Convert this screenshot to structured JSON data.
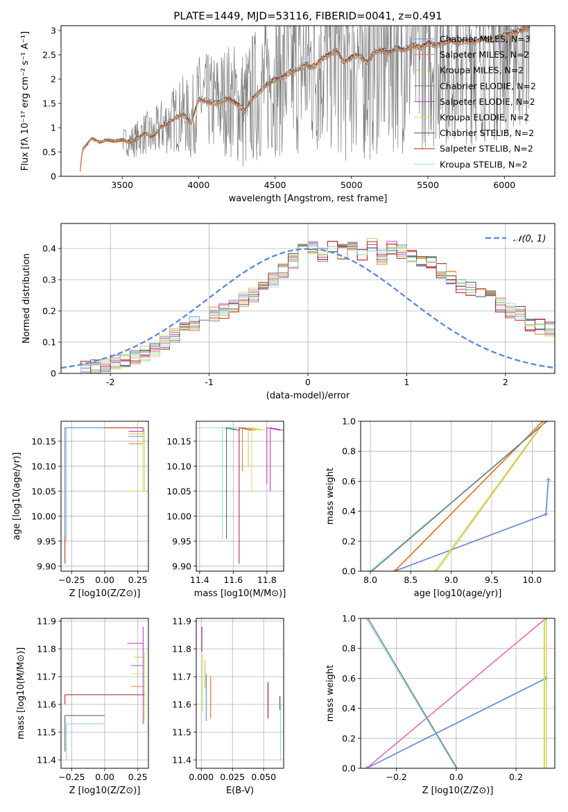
{
  "figure_title": "PLATE=1449, MJD=53116, FIBERID=0041, z=0.491",
  "series_colors": [
    "#6a8ed8",
    "#e8772e",
    "#e0b84a",
    "#5a8a5a",
    "#b02fb8",
    "#c8e060",
    "#505050",
    "#b81818",
    "#8fd8e0"
  ],
  "chart_data": [
    {
      "id": "spectrum",
      "type": "line",
      "title": "PLATE=1449, MJD=53116, FIBERID=0041, z=0.491",
      "xlabel": "wavelength [Angstrom, rest frame]",
      "ylabel": "Flux [fλ 10⁻¹⁷ erg cm⁻² s⁻¹ A⁻¹]",
      "xlim": [
        3100,
        6330
      ],
      "ylim": [
        0,
        3.1
      ],
      "xticks": [
        3500,
        4000,
        4500,
        5000,
        5500,
        6000
      ],
      "yticks": [
        0.0,
        0.5,
        1.0,
        1.5,
        2.0,
        2.5,
        3.0
      ],
      "grid": false,
      "legend_position": "upper right",
      "legend": [
        {
          "label": "Chabrier MILES, N_SSP=3"
        },
        {
          "label": "Salpeter MILES, N_SSP=2"
        },
        {
          "label": "Kroupa MILES, N_SSP=2"
        },
        {
          "label": "Chabrier ELODIE, N_SSP=2"
        },
        {
          "label": "Salpeter ELODIE, N_SSP=2"
        },
        {
          "label": "Kroupa ELODIE, N_SSP=2"
        },
        {
          "label": "Chabrier STELIB, N_SSP=2"
        },
        {
          "label": "Salpeter STELIB, N_SSP=2"
        },
        {
          "label": "Kroupa STELIB, N_SSP=2"
        }
      ],
      "model_curve": {
        "x": [
          3220,
          3240,
          3260,
          3280,
          3300,
          3350,
          3400,
          3450,
          3500,
          3550,
          3600,
          3650,
          3700,
          3750,
          3800,
          3850,
          3900,
          3950,
          4000,
          4050,
          4100,
          4150,
          4200,
          4250,
          4300,
          4350,
          4400,
          4450,
          4500,
          4550,
          4600,
          4650,
          4700,
          4750,
          4800,
          4850,
          4900,
          4950,
          5000,
          5050,
          5100,
          5150,
          5200,
          5250,
          5300,
          5350,
          5400,
          5450,
          5500,
          5550,
          5600,
          5650,
          5700,
          5750,
          5800,
          5850,
          5900,
          5950,
          6000,
          6050,
          6100,
          6150,
          6170
        ],
        "y": [
          0.0,
          0.55,
          0.62,
          0.7,
          0.78,
          0.7,
          0.75,
          0.72,
          0.75,
          0.7,
          0.78,
          0.9,
          0.8,
          1.0,
          1.1,
          1.2,
          1.3,
          1.1,
          1.6,
          1.55,
          1.5,
          1.55,
          1.6,
          1.5,
          1.35,
          1.6,
          1.75,
          1.9,
          2.0,
          2.05,
          2.15,
          2.2,
          2.3,
          2.25,
          2.4,
          2.5,
          2.6,
          2.35,
          2.45,
          2.5,
          2.35,
          2.55,
          2.6,
          2.55,
          2.65,
          2.6,
          2.7,
          2.65,
          2.75,
          2.7,
          2.75,
          2.8,
          2.75,
          2.8,
          2.75,
          2.85,
          2.8,
          2.85,
          2.9,
          2.95,
          3.0,
          3.05,
          3.05
        ]
      }
    },
    {
      "id": "residuals",
      "type": "line",
      "xlabel": "(data-model)/error",
      "ylabel": "Normed distribution",
      "xlim": [
        -2.5,
        2.5
      ],
      "ylim": [
        0,
        0.48
      ],
      "xticks": [
        -2,
        -1,
        0,
        1,
        2
      ],
      "yticks": [
        0.0,
        0.1,
        0.2,
        0.3,
        0.4
      ],
      "grid": true,
      "legend_position": "upper right",
      "legend": [
        {
          "label": "𝒩(0, 1)",
          "style": "dashed",
          "color": "#5b8bd9"
        }
      ],
      "gaussian": {
        "mean": 0,
        "sigma": 1
      },
      "histogram": {
        "bin_start": -2.4,
        "bin_width": 0.1,
        "counts": [
          0.01,
          0.015,
          0.02,
          0.025,
          0.035,
          0.04,
          0.05,
          0.065,
          0.08,
          0.1,
          0.12,
          0.14,
          0.16,
          0.17,
          0.19,
          0.2,
          0.22,
          0.24,
          0.25,
          0.28,
          0.3,
          0.33,
          0.36,
          0.39,
          0.41,
          0.38,
          0.4,
          0.39,
          0.42,
          0.38,
          0.41,
          0.37,
          0.4,
          0.39,
          0.38,
          0.36,
          0.35,
          0.33,
          0.31,
          0.28,
          0.27,
          0.26,
          0.24,
          0.22,
          0.2,
          0.19,
          0.16,
          0.15,
          0.14,
          0.12
        ]
      }
    },
    {
      "id": "age-vs-Z",
      "type": "line",
      "xlabel": "Z [log10(Z/Z⊙)]",
      "ylabel": "age  [log10(age/yr)]",
      "xlim": [
        -0.33,
        0.33
      ],
      "ylim": [
        9.89,
        10.19
      ],
      "xticks": [
        -0.25,
        0.0,
        0.25
      ],
      "xticklabels": [
        "−0.25",
        "0.00",
        "0.25"
      ],
      "yticks": [
        9.9,
        9.95,
        10.0,
        10.05,
        10.1,
        10.15
      ],
      "yticklabels": [
        "9.90",
        "9.95",
        "10.00",
        "10.05",
        "10.10",
        "10.15"
      ],
      "grid": true
    },
    {
      "id": "age-vs-mass",
      "type": "line",
      "xlabel": "mass [log10(M/M⊙)]",
      "xlim": [
        11.38,
        11.9
      ],
      "ylim": [
        9.89,
        10.19
      ],
      "xticks": [
        11.4,
        11.6,
        11.8
      ],
      "xticklabels": [
        "11.4",
        "11.6",
        "11.8"
      ],
      "yticks": [
        9.9,
        9.95,
        10.0,
        10.05,
        10.1,
        10.15
      ],
      "yticklabels": [
        "9.90",
        "9.95",
        "10.00",
        "10.05",
        "10.10",
        "10.15"
      ],
      "grid": true
    },
    {
      "id": "massweight-vs-age",
      "type": "line",
      "xlabel": "age  [log10(age/yr)]",
      "ylabel": "mass weight",
      "xlim": [
        7.88,
        10.28
      ],
      "ylim": [
        0,
        1.0
      ],
      "xticks": [
        8.0,
        8.5,
        9.0,
        9.5,
        10.0
      ],
      "xticklabels": [
        "8.0",
        "8.5",
        "9.0",
        "9.5",
        "10.0"
      ],
      "yticks": [
        0.0,
        0.2,
        0.4,
        0.6,
        0.8,
        1.0
      ],
      "yticklabels": [
        "0.0",
        "0.2",
        "0.4",
        "0.6",
        "0.8",
        "1.0"
      ],
      "grid": true,
      "series": [
        {
          "x": [
            8.3,
            10.17
          ],
          "y": [
            0.0,
            0.38
          ],
          "x2": [
            10.17,
            10.2
          ],
          "y2": [
            0.38,
            0.61
          ]
        },
        {
          "x": [
            8.3,
            10.13
          ],
          "y": [
            0.0,
            1.0
          ]
        },
        {
          "x": [
            8.8,
            10.15
          ],
          "y": [
            0.0,
            1.0
          ]
        },
        {
          "x": [
            8.0,
            10.18
          ],
          "y": [
            0.0,
            1.0
          ]
        }
      ]
    },
    {
      "id": "mass-vs-Z",
      "type": "line",
      "xlabel": "Z [log10(Z/Z⊙)]",
      "ylabel": "mass [log10(M/M⊙)]",
      "xlim": [
        -0.33,
        0.33
      ],
      "ylim": [
        11.37,
        11.91
      ],
      "xticks": [
        -0.25,
        0.0,
        0.25
      ],
      "xticklabels": [
        "−0.25",
        "0.00",
        "0.25"
      ],
      "yticks": [
        11.4,
        11.5,
        11.6,
        11.7,
        11.8,
        11.9
      ],
      "yticklabels": [
        "11.4",
        "11.5",
        "11.6",
        "11.7",
        "11.8",
        "11.9"
      ],
      "grid": true
    },
    {
      "id": "mass-vs-EBV",
      "type": "line",
      "xlabel": "E(B-V)",
      "xlim": [
        -0.004,
        0.066
      ],
      "ylim": [
        11.37,
        11.91
      ],
      "xticks": [
        0.0,
        0.025,
        0.05
      ],
      "xticklabels": [
        "0.000",
        "0.025",
        "0.050"
      ],
      "yticks": [
        11.4,
        11.5,
        11.6,
        11.7,
        11.8,
        11.9
      ],
      "yticklabels": [
        "11.4",
        "11.5",
        "11.6",
        "11.7",
        "11.8",
        "11.9"
      ],
      "grid": true
    },
    {
      "id": "massweight-vs-Z",
      "type": "line",
      "xlabel": "Z [log10(Z/Z⊙)]",
      "ylabel": "mass weight",
      "xlim": [
        -0.32,
        0.33
      ],
      "ylim": [
        0,
        1.0
      ],
      "xticks": [
        -0.2,
        0.0,
        0.2
      ],
      "xticklabels": [
        "−0.2",
        "0.0",
        "0.2"
      ],
      "yticks": [
        0.0,
        0.2,
        0.4,
        0.6,
        0.8,
        1.0
      ],
      "yticklabels": [
        "0.0",
        "0.2",
        "0.4",
        "0.6",
        "0.8",
        "1.0"
      ],
      "grid": true,
      "series": [
        {
          "x": [
            -0.3,
            0.3
          ],
          "y": [
            0.0,
            0.6
          ]
        },
        {
          "x": [
            -0.3,
            0.3
          ],
          "y": [
            0.0,
            1.0
          ]
        },
        {
          "x": [
            -0.3,
            0.0
          ],
          "y": [
            1.0,
            0.0
          ]
        }
      ]
    }
  ]
}
